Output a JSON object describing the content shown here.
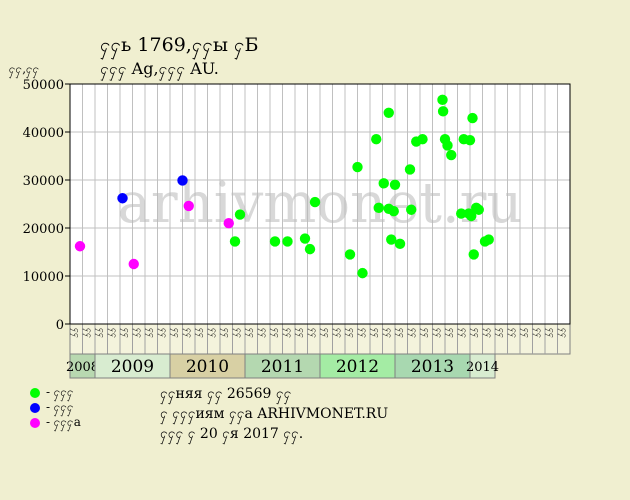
{
  "header": {
    "title": "ႁႁь 1769,ႁႁы ႁБ",
    "subtitle": "ႁႁႁ Ag,ႁႁႁ AU.",
    "y_unit": "ႁႁ,ႁႁ"
  },
  "watermark": "arhivmonet.ru",
  "legend": [
    {
      "label": "- ႁႁႁ",
      "color": "#00ff00"
    },
    {
      "label": "- ႁႁႁ",
      "color": "#0000ff"
    },
    {
      "label": "- ႁႁႁа",
      "color": "#ff00ff"
    }
  ],
  "notes": [
    "ႁႁняя ႁႁ 26569 ႁႁ",
    "ႁ ႁႁႁиям ႁႁа ARHIVMONET.RU",
    "ႁႁႁ ႁ 20 ႁя 2017 ႁႁ."
  ],
  "colors": {
    "background": "#f0efd0",
    "plot_bg": "#ffffff",
    "grid": "#c0c0c0",
    "green": "#00ff00",
    "blue": "#0000ff",
    "magenta": "#ff00ff"
  },
  "chart_data": {
    "type": "scatter",
    "ylim": [
      0,
      50000
    ],
    "y_ticks": [
      "0",
      "10000",
      "20000",
      "30000",
      "40000",
      "50000"
    ],
    "month_labels": [
      "ႁႁ",
      "ႁႁ",
      "ႁႁ",
      "ႁႁ",
      "ႁႁ",
      "ႁႁ",
      "ႁႁ",
      "ႁႁ",
      "ႁႁ",
      "ႁႁ",
      "ႁႁ",
      "ႁႁ",
      "ႁႁ",
      "ႁႁ",
      "ႁႁ",
      "ႁႁ",
      "ႁႁ",
      "ႁႁ",
      "ႁႁ",
      "ႁႁ",
      "ႁႁ",
      "ႁႁ",
      "ႁႁ",
      "ႁႁ",
      "ႁႁ",
      "ႁႁ",
      "ႁႁ",
      "ႁႁ",
      "ႁႁ",
      "ႁႁ",
      "ႁႁ",
      "ႁႁ",
      "ႁႁ",
      "ႁႁ",
      "ႁႁ",
      "ႁႁ",
      "ႁႁ",
      "ႁႁ",
      "ႁႁ",
      "ႁႁ"
    ],
    "years": [
      {
        "label": "2008",
        "months": 2,
        "color": "#b8d8b0"
      },
      {
        "label": "2009",
        "months": 6,
        "color": "#d8ecd0"
      },
      {
        "label": "2010",
        "months": 6,
        "color": "#d8d0a4"
      },
      {
        "label": "2011",
        "months": 6,
        "color": "#b4d8b0"
      },
      {
        "label": "2012",
        "months": 6,
        "color": "#a4eca4"
      },
      {
        "label": "2013",
        "months": 6,
        "color": "#a8d8b0"
      },
      {
        "label": "2014",
        "months": 2,
        "color": "#d8ecd0"
      }
    ],
    "series": [
      {
        "name": "- ႁႁႁ",
        "color": "#00ff00",
        "points": [
          [
            13.2,
            17200
          ],
          [
            13.6,
            22800
          ],
          [
            16.4,
            17200
          ],
          [
            17.4,
            17200
          ],
          [
            18.8,
            17800
          ],
          [
            19.2,
            15600
          ],
          [
            19.6,
            25400
          ],
          [
            22.4,
            14500
          ],
          [
            23.0,
            32700
          ],
          [
            23.4,
            10600
          ],
          [
            24.5,
            38500
          ],
          [
            24.7,
            24200
          ],
          [
            25.1,
            29300
          ],
          [
            25.5,
            44000
          ],
          [
            25.5,
            24000
          ],
          [
            25.7,
            17600
          ],
          [
            25.9,
            23500
          ],
          [
            26.0,
            29000
          ],
          [
            26.4,
            16700
          ],
          [
            27.2,
            32200
          ],
          [
            27.3,
            23800
          ],
          [
            27.7,
            38000
          ],
          [
            28.2,
            38500
          ],
          [
            29.8,
            46700
          ],
          [
            29.85,
            44300
          ],
          [
            30.0,
            38500
          ],
          [
            30.2,
            37200
          ],
          [
            30.5,
            35200
          ],
          [
            31.3,
            23000
          ],
          [
            31.5,
            38500
          ],
          [
            31.9,
            23000
          ],
          [
            32.0,
            38300
          ],
          [
            32.1,
            22500
          ],
          [
            32.2,
            42900
          ],
          [
            32.3,
            14500
          ],
          [
            32.5,
            24200
          ],
          [
            32.7,
            23800
          ],
          [
            33.2,
            17200
          ],
          [
            33.5,
            17600
          ]
        ]
      },
      {
        "name": "- ႁႁႁ",
        "color": "#0000ff",
        "points": [
          [
            4.2,
            26200
          ],
          [
            9.0,
            29900
          ]
        ]
      },
      {
        "name": "- ႁႁႁа",
        "color": "#ff00ff",
        "points": [
          [
            0.8,
            16200
          ],
          [
            5.1,
            12500
          ],
          [
            9.5,
            24600
          ],
          [
            12.7,
            21000
          ]
        ]
      }
    ]
  }
}
